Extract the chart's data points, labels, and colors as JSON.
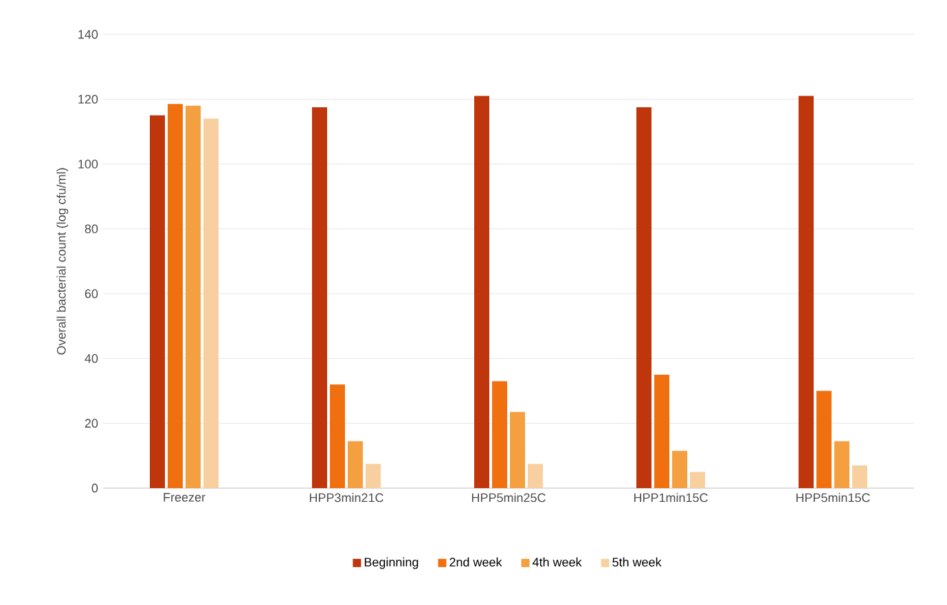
{
  "chart_data": {
    "type": "bar",
    "ylabel": "Overall bacterial count (log cfu/ml)",
    "categories": [
      "Freezer",
      "HPP3min21C",
      "HPP5min25C",
      "HPP1min15C",
      "HPP5min15C"
    ],
    "series": [
      {
        "name": "Beginning",
        "color": "#c0360c",
        "values": [
          115,
          117.5,
          121,
          117.5,
          121
        ]
      },
      {
        "name": "2nd week",
        "color": "#f07010",
        "values": [
          118.5,
          32,
          33,
          35,
          30
        ]
      },
      {
        "name": "4th week",
        "color": "#f4a040",
        "values": [
          118,
          14.5,
          23.5,
          11.5,
          14.5
        ]
      },
      {
        "name": "5th week",
        "color": "#f8d0a0",
        "values": [
          114,
          7.5,
          7.5,
          5,
          7
        ]
      }
    ],
    "ylim": [
      0,
      140
    ],
    "yticks": [
      0,
      20,
      40,
      60,
      80,
      100,
      120,
      140
    ],
    "grid": "y",
    "legend": "bottom"
  }
}
